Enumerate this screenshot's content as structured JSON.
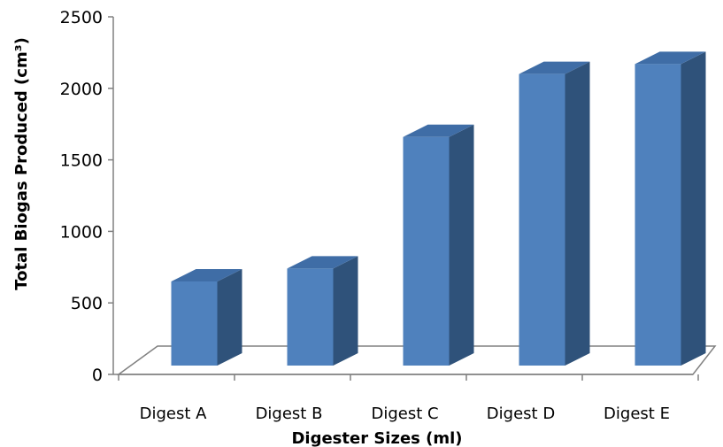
{
  "chart_data": {
    "type": "bar",
    "style": "3d-column",
    "title": "",
    "xlabel": "Digester Sizes (ml)",
    "ylabel": "Total Biogas Produced (cm³)",
    "categories": [
      "Digest A",
      "Digest B",
      "Digest C",
      "Digest D",
      "Digest E"
    ],
    "values": [
      650,
      740,
      1660,
      2100,
      2170
    ],
    "ylim": [
      0,
      2500
    ],
    "yticks": [
      "0",
      "500",
      "1000",
      "1500",
      "2000",
      "2500"
    ],
    "grid": false,
    "legend": "none",
    "colors": {
      "front": "#4F81BD",
      "side": "#2F527A",
      "top": "#3F6DA6",
      "floor": "#808080"
    }
  }
}
